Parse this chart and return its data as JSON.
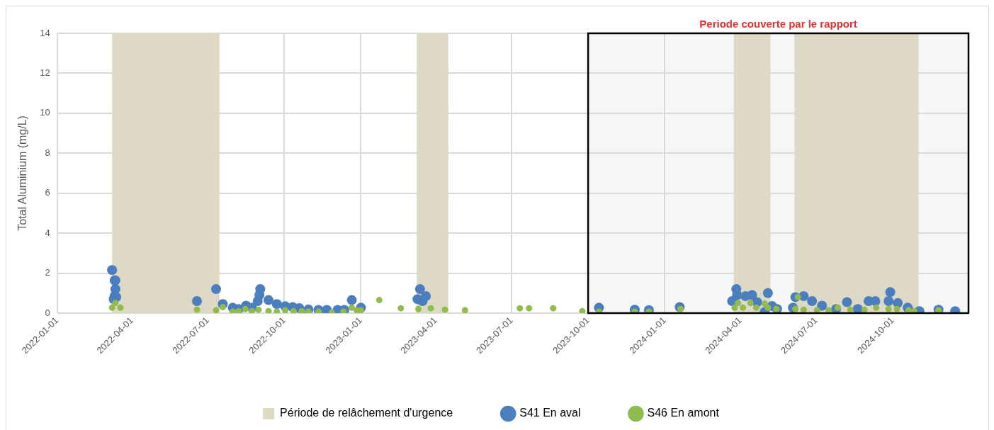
{
  "chart_data": {
    "type": "scatter",
    "ylabel": "Total Aluminium (mg/L)",
    "xlim": [
      "2022-01-01",
      "2024-12-31"
    ],
    "xticks": [
      "2022-01-01",
      "2022-04-01",
      "2022-07-01",
      "2022-10-01",
      "2023-01-01",
      "2023-04-01",
      "2023-07-01",
      "2023-10-01",
      "2024-01-01",
      "2024-04-01",
      "2024-07-01",
      "2024-10-01"
    ],
    "ylim": [
      0,
      14
    ],
    "yticks": [
      0,
      2,
      4,
      6,
      8,
      10,
      12,
      14
    ],
    "grid": true,
    "legend": "bottom",
    "marker": "circle",
    "bands": [
      {
        "axis": "x",
        "from": "2022-03-08",
        "to": "2022-07-15",
        "label": "Période de relâchement d'urgence",
        "color": "#ddd9c4"
      },
      {
        "axis": "x",
        "from": "2023-03-09",
        "to": "2023-04-16",
        "color": "#ddd9c4"
      },
      {
        "axis": "x",
        "from": "2024-03-24",
        "to": "2024-05-07",
        "color": "#ddd9c4"
      },
      {
        "axis": "x",
        "from": "2024-06-05",
        "to": "2024-11-01",
        "color": "#ddd9c4"
      },
      {
        "axis": "x",
        "from": "2023-10-01",
        "to": "2024-12-31",
        "label": "Periode couverte par le rapport",
        "color": "#f6f6f6"
      }
    ],
    "series": [
      {
        "name": "S41 En aval",
        "color": "#4a7ebf",
        "x": [
          "2022-03-08",
          "2022-03-11",
          "2022-03-12",
          "2022-03-12",
          "2022-03-11",
          "2022-03-13",
          "2022-03-10",
          "2022-06-18",
          "2022-07-11",
          "2022-07-19",
          "2022-07-31",
          "2022-08-07",
          "2022-08-16",
          "2022-08-23",
          "2022-09-02",
          "2022-09-01",
          "2022-08-30",
          "2022-09-12",
          "2022-09-22",
          "2022-10-02",
          "2022-10-11",
          "2022-10-19",
          "2022-10-30",
          "2022-11-11",
          "2022-11-21",
          "2022-12-04",
          "2022-12-12",
          "2022-12-21",
          "2023-01-01",
          "2023-03-13",
          "2023-03-20",
          "2023-03-10",
          "2023-03-16",
          "2023-10-14",
          "2023-11-26",
          "2023-12-13",
          "2024-01-19",
          "2024-03-27",
          "2024-03-28",
          "2024-03-22",
          "2024-04-07",
          "2024-04-15",
          "2024-04-21",
          "2024-05-04",
          "2024-05-09",
          "2024-05-15",
          "2024-04-30",
          "2024-06-06",
          "2024-06-16",
          "2024-06-03",
          "2024-06-26",
          "2024-07-08",
          "2024-07-25",
          "2024-08-07",
          "2024-08-20",
          "2024-09-02",
          "2024-09-10",
          "2024-09-28",
          "2024-09-26",
          "2024-10-07",
          "2024-10-19",
          "2024-11-02",
          "2024-11-25",
          "2024-12-15"
        ],
        "values": [
          2.15,
          1.64,
          1.64,
          1.2,
          0.85,
          0.8,
          0.7,
          0.6,
          1.2,
          0.45,
          0.27,
          0.2,
          0.37,
          0.27,
          1.2,
          0.9,
          0.6,
          0.65,
          0.45,
          0.34,
          0.3,
          0.25,
          0.18,
          0.16,
          0.16,
          0.16,
          0.16,
          0.65,
          0.27,
          1.2,
          0.85,
          0.7,
          0.6,
          0.27,
          0.17,
          0.15,
          0.3,
          1.2,
          0.9,
          0.6,
          0.85,
          0.9,
          0.55,
          1.0,
          0.35,
          0.2,
          0.05,
          0.8,
          0.85,
          0.27,
          0.6,
          0.37,
          0.2,
          0.55,
          0.2,
          0.6,
          0.6,
          1.05,
          0.6,
          0.5,
          0.27,
          0.1,
          0.17,
          0.1
        ]
      },
      {
        "name": "S46 En amont",
        "color": "#92bb4f",
        "x": [
          "2022-03-08",
          "2022-03-12",
          "2022-03-18",
          "2022-06-18",
          "2022-07-11",
          "2022-07-19",
          "2022-07-31",
          "2022-08-07",
          "2022-08-15",
          "2022-08-23",
          "2022-08-31",
          "2022-09-12",
          "2022-09-22",
          "2022-10-02",
          "2022-10-12",
          "2022-10-22",
          "2022-10-30",
          "2022-11-11",
          "2022-11-27",
          "2022-12-11",
          "2022-12-21",
          "2022-12-27",
          "2023-01-01",
          "2023-01-23",
          "2023-02-18",
          "2023-03-11",
          "2023-03-26",
          "2023-04-12",
          "2023-05-06",
          "2023-07-11",
          "2023-07-22",
          "2023-08-20",
          "2023-09-24",
          "2023-10-14",
          "2023-11-26",
          "2023-12-13",
          "2024-01-20",
          "2024-03-25",
          "2024-03-29",
          "2024-04-04",
          "2024-04-13",
          "2024-04-20",
          "2024-04-30",
          "2024-05-04",
          "2024-05-14",
          "2024-06-06",
          "2024-06-09",
          "2024-06-16",
          "2024-07-02",
          "2024-07-16",
          "2024-07-27",
          "2024-08-11",
          "2024-08-28",
          "2024-09-11",
          "2024-09-26",
          "2024-10-06",
          "2024-10-20",
          "2024-10-27",
          "2024-11-25"
        ],
        "values": [
          0.27,
          0.5,
          0.27,
          0.17,
          0.14,
          0.3,
          0.07,
          0.1,
          0.2,
          0.1,
          0.17,
          0.1,
          0.07,
          0.14,
          0.1,
          0.1,
          0.07,
          0.07,
          0.03,
          0.07,
          0.27,
          0.14,
          0.14,
          0.65,
          0.24,
          0.2,
          0.24,
          0.17,
          0.14,
          0.24,
          0.24,
          0.24,
          0.1,
          0.07,
          0.07,
          0.07,
          0.2,
          0.27,
          0.5,
          0.27,
          0.5,
          0.27,
          0.47,
          0.27,
          0.2,
          0.2,
          0.8,
          0.17,
          0.14,
          0.14,
          0.27,
          0.17,
          0.17,
          0.27,
          0.2,
          0.2,
          0.14,
          0.1,
          0.14
        ]
      }
    ]
  }
}
